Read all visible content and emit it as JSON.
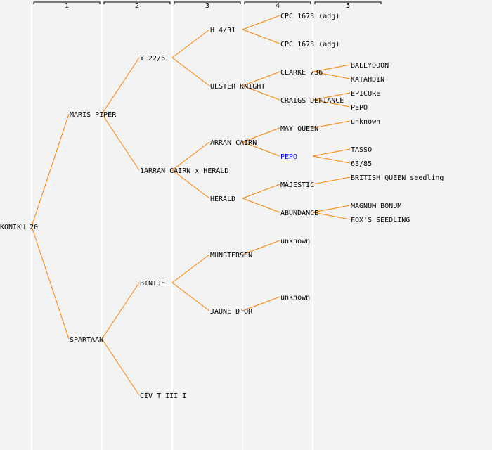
{
  "header": {
    "generations": [
      "1",
      "2",
      "3",
      "4",
      "5"
    ]
  },
  "colors": {
    "edge": "#ff8000",
    "text": "#000000",
    "highlight": "#0000ff",
    "background": "#f3f3f3"
  },
  "tree": {
    "name": "KONIKU 20",
    "parents": [
      {
        "name": "MARIS PIPER",
        "parents": [
          {
            "name": "Y 22/6",
            "parents": [
              {
                "name": "H 4/31",
                "parents": [
                  {
                    "name": "CPC 1673 (adg)"
                  },
                  {
                    "name": "CPC 1673 (adg)"
                  }
                ]
              },
              {
                "name": "ULSTER KNIGHT",
                "parents": [
                  {
                    "name": "CLARKE 736",
                    "parents": [
                      {
                        "name": "BALLYDOON"
                      },
                      {
                        "name": "KATAHDIN"
                      }
                    ]
                  },
                  {
                    "name": "CRAIGS DEFIANCE",
                    "parents": [
                      {
                        "name": "EPICURE"
                      },
                      {
                        "name": "PEPO"
                      }
                    ]
                  }
                ]
              }
            ]
          },
          {
            "name": "1ARRAN CAIRN x HERALD",
            "parents": [
              {
                "name": "ARRAN CAIRN",
                "parents": [
                  {
                    "name": "MAY QUEEN",
                    "parents": [
                      {
                        "name": "unknown"
                      },
                      null
                    ]
                  },
                  {
                    "name": "PEPO",
                    "highlight": true,
                    "parents": [
                      {
                        "name": "TASSO"
                      },
                      {
                        "name": "63/85"
                      }
                    ]
                  }
                ]
              },
              {
                "name": "HERALD",
                "parents": [
                  {
                    "name": "MAJESTIC",
                    "parents": [
                      {
                        "name": "BRITISH QUEEN seedling"
                      },
                      null
                    ]
                  },
                  {
                    "name": "ABUNDANCE",
                    "parents": [
                      {
                        "name": "MAGNUM BONUM"
                      },
                      {
                        "name": "FOX'S SEEDLING"
                      }
                    ]
                  }
                ]
              }
            ]
          }
        ]
      },
      {
        "name": "SPARTAAN",
        "parents": [
          {
            "name": "BINTJE",
            "parents": [
              {
                "name": "MUNSTERSEN",
                "parents": [
                  {
                    "name": "unknown"
                  },
                  null
                ]
              },
              {
                "name": "JAUNE D'OR",
                "parents": [
                  {
                    "name": "unknown"
                  },
                  null
                ]
              }
            ]
          },
          {
            "name": "CIV T III I"
          }
        ]
      }
    ]
  }
}
